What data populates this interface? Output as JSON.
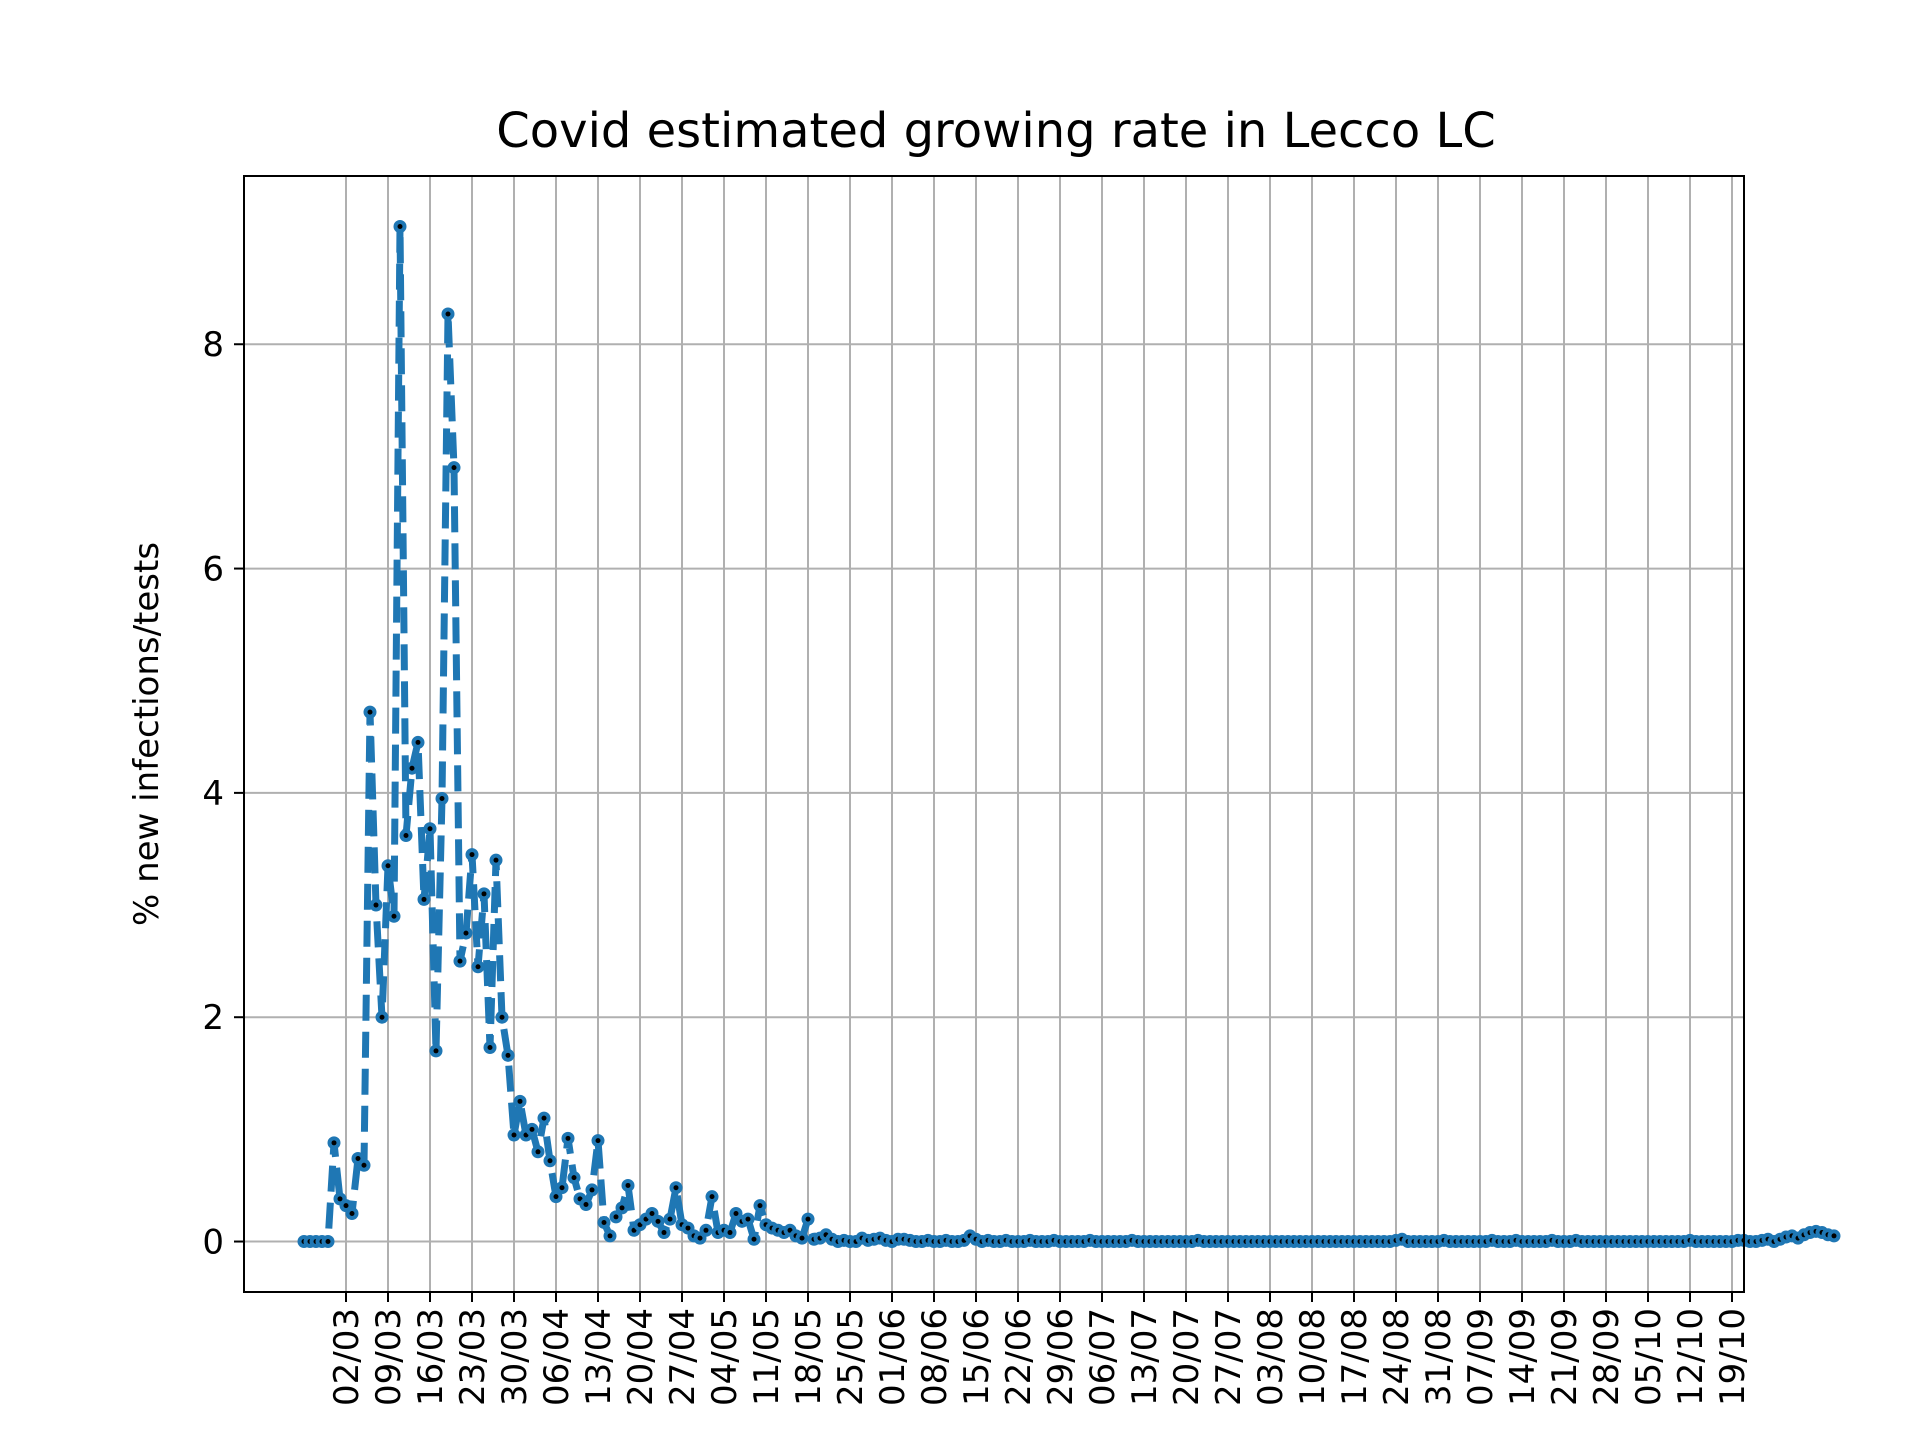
{
  "chart_data": {
    "type": "line",
    "title": "Covid estimated growing rate in Lecco LC",
    "xlabel": "",
    "ylabel": "% new infections/tests",
    "grid": true,
    "ylim": [
      -0.45,
      9.5
    ],
    "xlim": [
      "2020-02-14",
      "2020-10-21"
    ],
    "yticks": [
      0,
      2,
      4,
      6,
      8
    ],
    "xtick_dates": [
      "2020-03-02",
      "2020-03-09",
      "2020-03-16",
      "2020-03-23",
      "2020-03-30",
      "2020-04-06",
      "2020-04-13",
      "2020-04-20",
      "2020-04-27",
      "2020-05-04",
      "2020-05-11",
      "2020-05-18",
      "2020-05-25",
      "2020-06-01",
      "2020-06-08",
      "2020-06-15",
      "2020-06-22",
      "2020-06-29",
      "2020-07-06",
      "2020-07-13",
      "2020-07-20",
      "2020-07-27",
      "2020-08-03",
      "2020-08-10",
      "2020-08-17",
      "2020-08-24",
      "2020-08-31",
      "2020-09-07",
      "2020-09-14",
      "2020-09-21",
      "2020-09-28",
      "2020-10-05",
      "2020-10-12",
      "2020-10-19"
    ],
    "xtick_labels": [
      "02/03",
      "09/03",
      "16/03",
      "23/03",
      "30/03",
      "06/04",
      "13/04",
      "20/04",
      "27/04",
      "04/05",
      "11/05",
      "18/05",
      "25/05",
      "01/06",
      "08/06",
      "15/06",
      "22/06",
      "29/06",
      "06/07",
      "13/07",
      "20/07",
      "27/07",
      "03/08",
      "10/08",
      "17/08",
      "24/08",
      "31/08",
      "07/09",
      "14/09",
      "21/09",
      "28/09",
      "05/10",
      "12/10",
      "19/10"
    ],
    "colors": {
      "line": "#1f77b4",
      "marker_center": "#000000",
      "grid": "#b0b0b0"
    },
    "series": [
      {
        "start_date": "2020-02-24",
        "values": [
          0,
          0,
          0,
          0,
          0,
          0.88,
          0.38,
          0.32,
          0.25,
          0.74,
          0.68,
          4.72,
          3.0,
          2.0,
          3.35,
          2.9,
          9.05,
          3.62,
          4.22,
          4.45,
          3.05,
          3.68,
          1.7,
          3.95,
          8.27,
          6.9,
          2.5,
          2.75,
          3.45,
          2.45,
          3.1,
          1.73,
          3.4,
          2.0,
          1.66,
          0.95,
          1.25,
          0.95,
          1.0,
          0.8,
          1.1,
          0.72,
          0.4,
          0.48,
          0.92,
          0.57,
          0.38,
          0.33,
          0.46,
          0.9,
          0.17,
          0.05,
          0.22,
          0.3,
          0.5,
          0.1,
          0.15,
          0.2,
          0.25,
          0.18,
          0.08,
          0.2,
          0.48,
          0.15,
          0.12,
          0.05,
          0.03,
          0.1,
          0.4,
          0.08,
          0.1,
          0.08,
          0.25,
          0.18,
          0.2,
          0.02,
          0.32,
          0.15,
          0.12,
          0.1,
          0.08,
          0.1,
          0.05,
          0.03,
          0.2,
          0.02,
          0.03,
          0.06,
          0.02,
          0.0,
          0.01,
          0.0,
          0.0,
          0.03,
          0.01,
          0.02,
          0.03,
          0.01,
          0.0,
          0.02,
          0.02,
          0.01,
          0.0,
          0.0,
          0.01,
          0.0,
          0.0,
          0.01,
          0.0,
          0.0,
          0.01,
          0.05,
          0.02,
          0.0,
          0.01,
          0.0,
          0.0,
          0.01,
          0.0,
          0.0,
          0.0,
          0.01,
          0.0,
          0.0,
          0.0,
          0.01,
          0.0,
          0.0,
          0.0,
          0.0,
          0.0,
          0.01,
          0.0,
          0.0,
          0.0,
          0.0,
          0.0,
          0.0,
          0.01,
          0.0,
          0.0,
          0.0,
          0.0,
          0.0,
          0.0,
          0.0,
          0.0,
          0.0,
          0.0,
          0.01,
          0.0,
          0.0,
          0.0,
          0.0,
          0.0,
          0.0,
          0.0,
          0.0,
          0.0,
          0.0,
          0.0,
          0.0,
          0.0,
          0.0,
          0.0,
          0.0,
          0.0,
          0.0,
          0.0,
          0.0,
          0.0,
          0.0,
          0.0,
          0.0,
          0.0,
          0.0,
          0.0,
          0.0,
          0.0,
          0.0,
          0.0,
          0.0,
          0.01,
          0.02,
          0.0,
          0.0,
          0.0,
          0.0,
          0.0,
          0.0,
          0.01,
          0.0,
          0.0,
          0.0,
          0.0,
          0.0,
          0.0,
          0.0,
          0.01,
          0.0,
          0.0,
          0.0,
          0.01,
          0.0,
          0.0,
          0.0,
          0.0,
          0.0,
          0.01,
          0.0,
          0.0,
          0.0,
          0.01,
          0.0,
          0.0,
          0.0,
          0.0,
          0.0,
          0.0,
          0.0,
          0.0,
          0.0,
          0.0,
          0.0,
          0.0,
          0.0,
          0.0,
          0.0,
          0.0,
          0.0,
          0.0,
          0.01,
          0.0,
          0.0,
          0.0,
          0.0,
          0.0,
          0.0,
          0.0,
          0.01,
          0.01,
          0.0,
          0.0,
          0.01,
          0.02,
          0.0,
          0.02,
          0.04,
          0.05,
          0.03,
          0.06,
          0.08,
          0.09,
          0.08,
          0.06,
          0.05
        ]
      }
    ]
  }
}
